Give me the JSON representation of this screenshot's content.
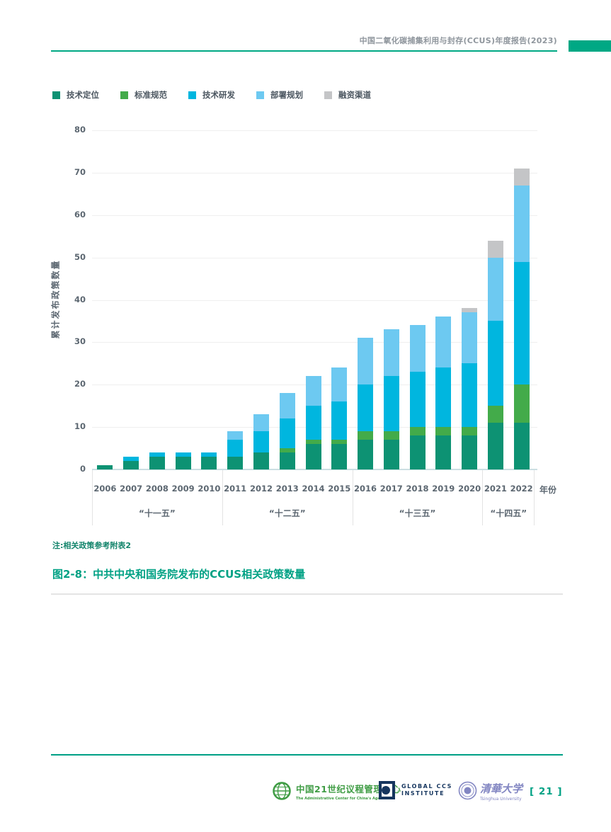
{
  "header": {
    "title": "中国二氧化碳捕集利用与封存(CCUS)年度报告(2023)"
  },
  "chart_data": {
    "type": "bar",
    "stacked": true,
    "categories": [
      "2006",
      "2007",
      "2008",
      "2009",
      "2010",
      "2011",
      "2012",
      "2013",
      "2014",
      "2015",
      "2016",
      "2017",
      "2018",
      "2019",
      "2020",
      "2021",
      "2022"
    ],
    "series": [
      {
        "name": "技术定位",
        "color": "#0d9273",
        "values": [
          1,
          2,
          3,
          3,
          3,
          3,
          4,
          4,
          6,
          6,
          7,
          7,
          8,
          8,
          8,
          11,
          11
        ]
      },
      {
        "name": "标准规范",
        "color": "#43ab4a",
        "values": [
          0,
          0,
          0,
          0,
          0,
          0,
          0,
          1,
          1,
          1,
          2,
          2,
          2,
          2,
          2,
          4,
          9
        ]
      },
      {
        "name": "技术研发",
        "color": "#00b6df",
        "values": [
          0,
          1,
          1,
          1,
          1,
          4,
          5,
          7,
          8,
          9,
          11,
          13,
          13,
          14,
          15,
          20,
          29
        ]
      },
      {
        "name": "部署规划",
        "color": "#6dc9f1",
        "values": [
          0,
          0,
          0,
          0,
          0,
          2,
          4,
          6,
          7,
          8,
          11,
          11,
          11,
          12,
          12,
          15,
          18
        ]
      },
      {
        "name": "融资渠道",
        "color": "#c4c5c7",
        "values": [
          0,
          0,
          0,
          0,
          0,
          0,
          0,
          0,
          0,
          0,
          0,
          0,
          0,
          0,
          1,
          4,
          4
        ]
      }
    ],
    "totals": [
      1,
      3,
      4,
      4,
      4,
      9,
      13,
      18,
      22,
      24,
      31,
      33,
      34,
      36,
      38,
      54,
      71
    ],
    "title": "",
    "xlabel": "年份",
    "ylabel": "累计发布政策数量",
    "ylim": [
      0,
      80
    ],
    "ytick_step": 10,
    "grid": true,
    "legend_position": "top",
    "group_labels": [
      {
        "label": "“十一五”",
        "span": [
          0,
          4
        ]
      },
      {
        "label": "“十二五”",
        "span": [
          5,
          9
        ]
      },
      {
        "label": "“十三五”",
        "span": [
          10,
          14
        ]
      },
      {
        "label": "“十四五”",
        "span": [
          15,
          16
        ]
      }
    ]
  },
  "note": "注:相关政策参考附表2",
  "caption": "图2-8：中共中央和国务院发布的CCUS相关政策数量",
  "footer": {
    "org1": {
      "name": "中国21世纪议程管理中心",
      "subtitle": "The Administrative Center for China's Agenda 21"
    },
    "org2": {
      "line1": "GLOBAL CCS",
      "line2": "INSTITUTE"
    },
    "org3": {
      "name": "清華大学",
      "subtitle": "Tsinghua University"
    },
    "page_number": "[ 21 ]"
  }
}
